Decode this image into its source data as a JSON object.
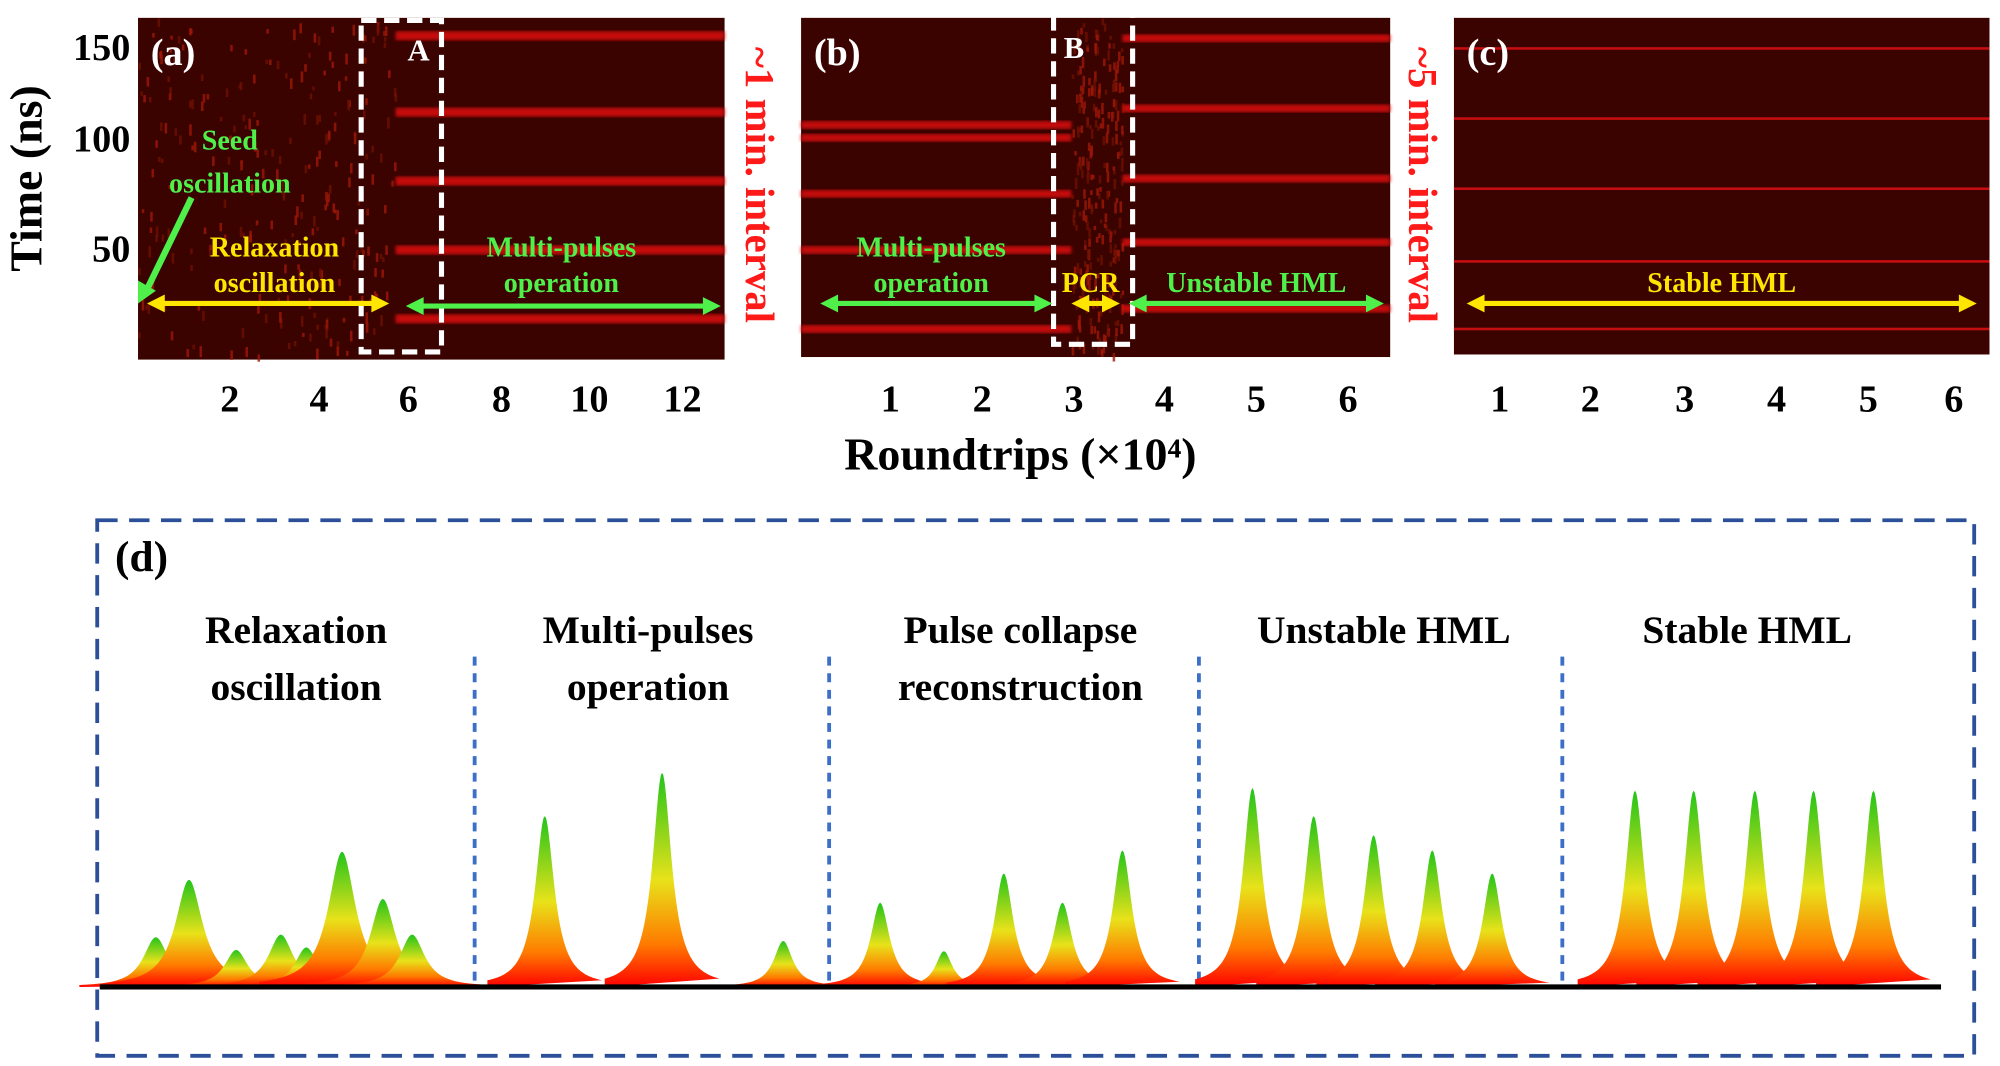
{
  "panels": [
    {
      "label": "(a)",
      "box_label": "A",
      "xticks": [
        2,
        4,
        6,
        8,
        10,
        12
      ],
      "annotations": [
        {
          "text": [
            "Seed",
            "oscillation"
          ]
        },
        {
          "text": [
            "Relaxation",
            "oscillation"
          ]
        },
        {
          "text": [
            "Multi-pulses",
            "operation"
          ]
        }
      ]
    },
    {
      "label": "(b)",
      "box_label": "B",
      "xticks": [
        1,
        2,
        3,
        4,
        5,
        6
      ],
      "annotations": [
        {
          "text": [
            "Multi-pulses",
            "operation"
          ]
        },
        {
          "text": [
            "PCR"
          ]
        },
        {
          "text": [
            "Unstable HML"
          ]
        }
      ]
    },
    {
      "label": "(c)",
      "xticks": [
        1,
        2,
        3,
        4,
        5,
        6
      ],
      "annotations": [
        {
          "text": [
            "Stable HML"
          ]
        }
      ]
    }
  ],
  "time_ticks": [
    150,
    100,
    50
  ],
  "y_axis_label": "Time (ns)",
  "x_axis_label": "Roundtrips (×10⁴)",
  "intervals": [
    "~1 min. interval",
    "~5 min. interval"
  ],
  "schematic": {
    "label": "(d)",
    "stages": [
      [
        "Relaxation",
        "oscillation"
      ],
      [
        "Multi-pulses",
        "operation"
      ],
      [
        "Pulse collapse",
        "reconstruction"
      ],
      [
        "Unstable HML"
      ],
      [
        "Stable HML"
      ]
    ]
  }
}
